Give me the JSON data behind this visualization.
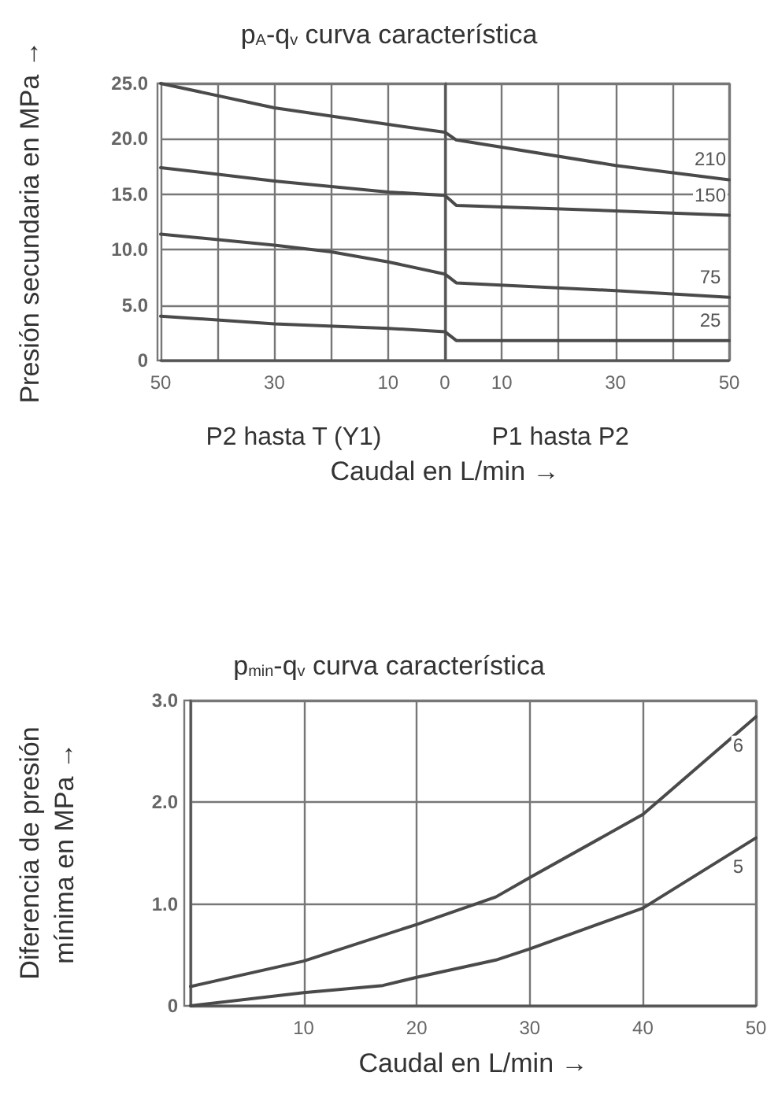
{
  "chart_data": [
    {
      "type": "line",
      "title": "p$_{A}$-q$_{v}$ curva característica",
      "xlabel": "Caudal en L/min →",
      "ylabel": "Presión secundaria en MPa →",
      "annotations": [
        "P2 hasta T (Y1)",
        "P1 hasta P2"
      ],
      "xlim": [
        -50,
        50
      ],
      "xticks": [
        {
          "value": -50,
          "label": "50"
        },
        {
          "value": -40,
          "label": null
        },
        {
          "value": -30,
          "label": "30"
        },
        {
          "value": -20,
          "label": null
        },
        {
          "value": -10,
          "label": "10"
        },
        {
          "value": 0,
          "label": "0"
        },
        {
          "value": 10,
          "label": "10"
        },
        {
          "value": 20,
          "label": null
        },
        {
          "value": 30,
          "label": "30"
        },
        {
          "value": 40,
          "label": null
        },
        {
          "value": 50,
          "label": "50"
        }
      ],
      "ylim": [
        0,
        25
      ],
      "yticks": [
        {
          "value": 0,
          "label": "0"
        },
        {
          "value": 5,
          "label": "5.0"
        },
        {
          "value": 10,
          "label": "10.0"
        },
        {
          "value": 15,
          "label": "15.0"
        },
        {
          "value": 20,
          "label": "20.0"
        },
        {
          "value": 25,
          "label": "25.0"
        }
      ],
      "grid": true,
      "legend": false,
      "marker": "none",
      "line_style": "solid",
      "series": [
        {
          "name": "210",
          "color": "#4a4a4a",
          "x": [
            -50,
            -30,
            -10,
            0,
            2,
            30,
            50
          ],
          "values": [
            25.0,
            22.8,
            21.3,
            20.6,
            19.9,
            17.6,
            16.3
          ]
        },
        {
          "name": "150",
          "color": "#4a4a4a",
          "x": [
            -50,
            -30,
            -10,
            0,
            2,
            30,
            50
          ],
          "values": [
            17.4,
            16.2,
            15.2,
            14.9,
            14.0,
            13.5,
            13.1
          ]
        },
        {
          "name": "75",
          "color": "#4a4a4a",
          "x": [
            -50,
            -30,
            -20,
            -10,
            0,
            2,
            30,
            50
          ],
          "values": [
            11.4,
            10.4,
            9.8,
            8.9,
            7.8,
            7.0,
            6.3,
            5.7
          ]
        },
        {
          "name": "25",
          "color": "#4a4a4a",
          "x": [
            -50,
            -30,
            -10,
            0,
            2,
            50
          ],
          "values": [
            4.0,
            3.3,
            2.9,
            2.6,
            1.8,
            1.8
          ]
        }
      ]
    },
    {
      "type": "line",
      "title": "p$_{min}$-q$_{v}$ curva característica",
      "xlabel": "Caudal en L/min →",
      "ylabel": "Diferencia de presión\nmínima en MPa →",
      "xlim": [
        0,
        50
      ],
      "xticks": [
        {
          "value": 0,
          "label": null
        },
        10,
        20,
        30,
        40,
        50
      ],
      "ylim": [
        0,
        3
      ],
      "yticks": [
        {
          "value": 0,
          "label": "0"
        },
        {
          "value": 1,
          "label": "1.0"
        },
        {
          "value": 2,
          "label": "2.0"
        },
        {
          "value": 3,
          "label": "3.0"
        }
      ],
      "grid": true,
      "legend": false,
      "marker": "none",
      "line_style": "solid",
      "series": [
        {
          "name": "6",
          "color": "#4a4a4a",
          "x": [
            0,
            10,
            20,
            27,
            30,
            40,
            50
          ],
          "values": [
            0.19,
            0.44,
            0.8,
            1.07,
            1.26,
            1.88,
            2.84
          ]
        },
        {
          "name": "5",
          "color": "#4a4a4a",
          "x": [
            0,
            10,
            17,
            20,
            27,
            30,
            40,
            50
          ],
          "values": [
            0,
            0.13,
            0.2,
            0.28,
            0.45,
            0.56,
            0.96,
            1.65
          ]
        }
      ]
    }
  ]
}
